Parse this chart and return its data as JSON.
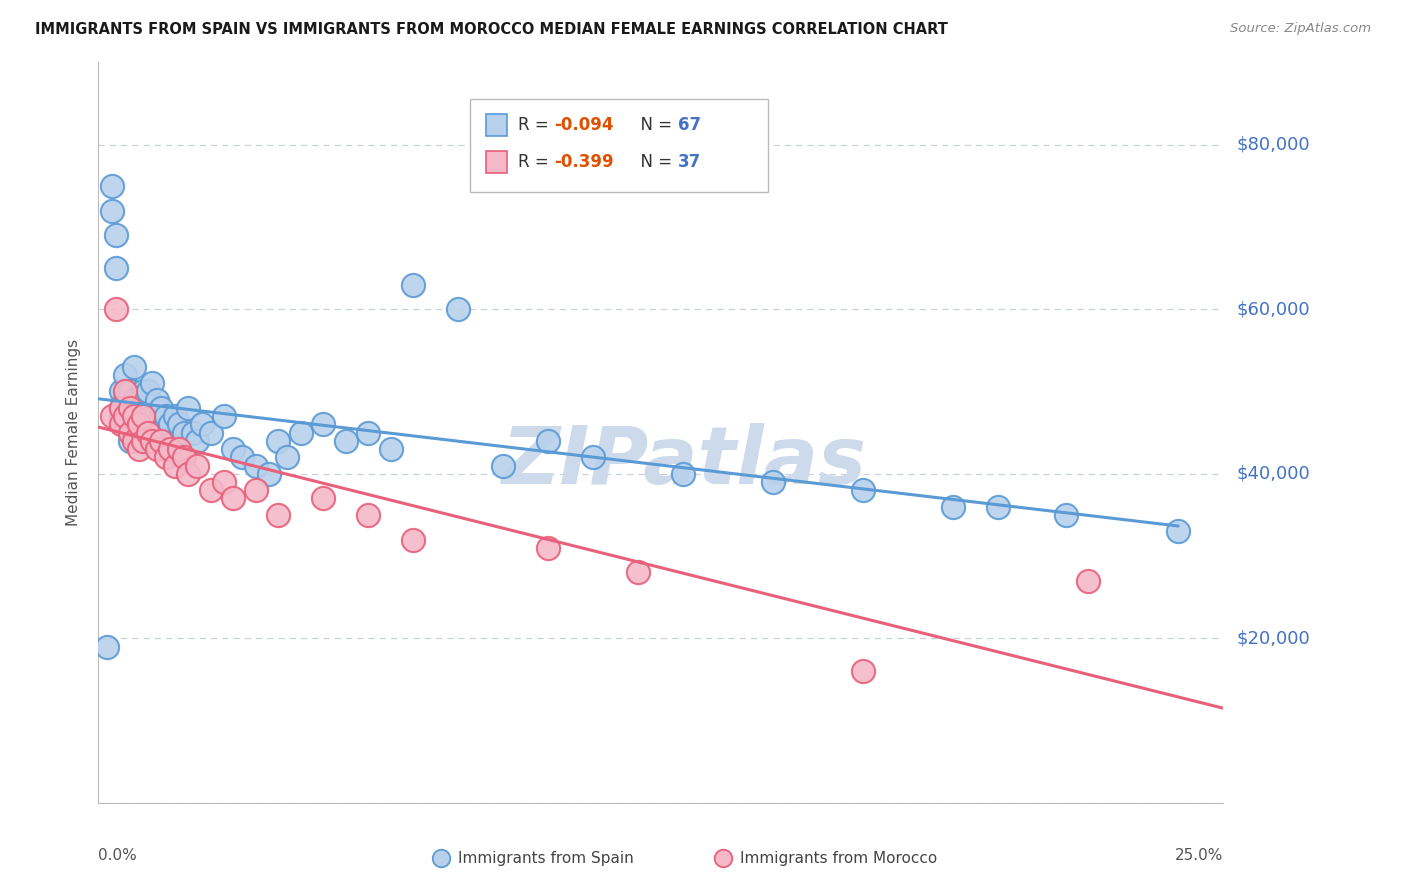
{
  "title": "IMMIGRANTS FROM SPAIN VS IMMIGRANTS FROM MOROCCO MEDIAN FEMALE EARNINGS CORRELATION CHART",
  "source": "Source: ZipAtlas.com",
  "ylabel": "Median Female Earnings",
  "yticks": [
    0,
    20000,
    40000,
    60000,
    80000
  ],
  "ytick_labels": [
    "",
    "$20,000",
    "$40,000",
    "$60,000",
    "$80,000"
  ],
  "xmin": 0.0,
  "xmax": 0.25,
  "ymin": 0,
  "ymax": 90000,
  "series_spain": {
    "label": "Immigrants from Spain",
    "color_face": "#b8d0eb",
    "color_edge": "#5b9bd5",
    "R": -0.094,
    "N": 67
  },
  "series_morocco": {
    "label": "Immigrants from Morocco",
    "color_face": "#f4b8c8",
    "color_edge": "#e8607a",
    "R": -0.399,
    "N": 37
  },
  "watermark": "ZIPatlas",
  "watermark_color": "#ccdaeb",
  "background_color": "#ffffff",
  "title_color": "#1a1a1a",
  "title_fontsize": 10.5,
  "axis_label_color": "#555555",
  "ytick_color": "#4472c4",
  "grid_color": "#c8d0d8",
  "legend_R_color": "#e05000",
  "legend_N_color": "#4472c4",
  "spain_x": [
    0.002,
    0.003,
    0.003,
    0.004,
    0.004,
    0.005,
    0.005,
    0.005,
    0.006,
    0.006,
    0.006,
    0.007,
    0.007,
    0.007,
    0.008,
    0.008,
    0.008,
    0.009,
    0.009,
    0.01,
    0.01,
    0.01,
    0.011,
    0.011,
    0.012,
    0.012,
    0.013,
    0.013,
    0.014,
    0.014,
    0.015,
    0.015,
    0.016,
    0.016,
    0.017,
    0.017,
    0.018,
    0.019,
    0.02,
    0.021,
    0.022,
    0.023,
    0.025,
    0.028,
    0.03,
    0.032,
    0.035,
    0.038,
    0.04,
    0.042,
    0.045,
    0.05,
    0.055,
    0.06,
    0.065,
    0.07,
    0.08,
    0.09,
    0.1,
    0.11,
    0.13,
    0.15,
    0.17,
    0.19,
    0.2,
    0.215,
    0.24
  ],
  "spain_y": [
    19000,
    75000,
    72000,
    69000,
    65000,
    50000,
    48000,
    47000,
    52000,
    49000,
    46000,
    50000,
    47000,
    44000,
    53000,
    49000,
    46000,
    48000,
    45000,
    50000,
    47000,
    44000,
    50000,
    46000,
    51000,
    47000,
    49000,
    45000,
    48000,
    44000,
    47000,
    43000,
    46000,
    43000,
    47000,
    44000,
    46000,
    45000,
    48000,
    45000,
    44000,
    46000,
    45000,
    47000,
    43000,
    42000,
    41000,
    40000,
    44000,
    42000,
    45000,
    46000,
    44000,
    45000,
    43000,
    63000,
    60000,
    41000,
    44000,
    42000,
    40000,
    39000,
    38000,
    36000,
    36000,
    35000,
    33000
  ],
  "morocco_x": [
    0.003,
    0.004,
    0.005,
    0.005,
    0.006,
    0.006,
    0.007,
    0.007,
    0.008,
    0.008,
    0.009,
    0.009,
    0.01,
    0.01,
    0.011,
    0.012,
    0.013,
    0.014,
    0.015,
    0.016,
    0.017,
    0.018,
    0.019,
    0.02,
    0.022,
    0.025,
    0.028,
    0.03,
    0.035,
    0.04,
    0.05,
    0.06,
    0.07,
    0.1,
    0.12,
    0.17,
    0.22
  ],
  "morocco_y": [
    47000,
    60000,
    48000,
    46000,
    50000,
    47000,
    48000,
    45000,
    47000,
    44000,
    46000,
    43000,
    47000,
    44000,
    45000,
    44000,
    43000,
    44000,
    42000,
    43000,
    41000,
    43000,
    42000,
    40000,
    41000,
    38000,
    39000,
    37000,
    38000,
    35000,
    37000,
    35000,
    32000,
    31000,
    28000,
    16000,
    27000
  ]
}
